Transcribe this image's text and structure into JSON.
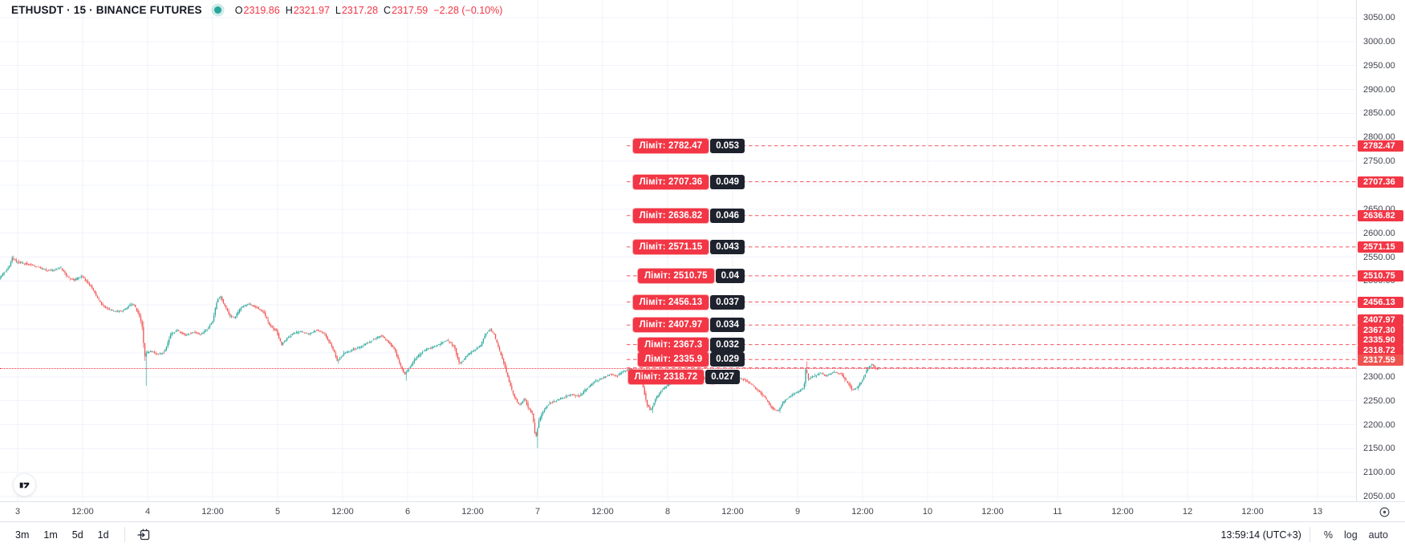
{
  "header": {
    "title": "ETHUSDT · 15 · BINANCE FUTURES",
    "symbol": "ETHUSDT",
    "interval": "15",
    "exchange": "BINANCE FUTURES",
    "ohlc": [
      {
        "k": "O",
        "v": "2319.86"
      },
      {
        "k": "H",
        "v": "2321.97"
      },
      {
        "k": "L",
        "v": "2317.28"
      },
      {
        "k": "C",
        "v": "2317.59"
      }
    ],
    "change": "−2.28",
    "change_pct": "(−0.10%)"
  },
  "colors": {
    "up": "#26a69a",
    "down": "#ef5350",
    "accent_red": "#f23645",
    "last_price_tag": "#ef5350",
    "grid": "#f0f3fa",
    "axis_text": "#42464e",
    "label_dark_box": "#1e222d",
    "connection_dot": "#26a69a"
  },
  "icons": {
    "connection-dot": "filled teal circle with halo",
    "go-to-date-icon": "calendar with arrow",
    "axis-settings-icon": "circle with center dot",
    "tradingview-logo": "17 monogram in white circle"
  },
  "chart_data": {
    "type": "candlestick",
    "title": "ETHUSDT 15m BINANCE FUTURES",
    "y_axis": {
      "min": 2050,
      "max": 3050,
      "step": 50,
      "side": "right",
      "visible_labels": [
        3050,
        3000,
        2950,
        2900,
        2850,
        2800,
        2750,
        2650,
        2600,
        2550,
        2500,
        2300,
        2250,
        2200,
        2150,
        2100,
        2050
      ]
    },
    "x_axis": {
      "day_labels": [
        "3",
        "4",
        "5",
        "6",
        "7",
        "8",
        "9",
        "10",
        "11",
        "12",
        "13"
      ],
      "between_label": "12:00"
    },
    "grid": true,
    "last_price": 2317.59,
    "ohlc_last": {
      "open": 2319.86,
      "high": 2321.97,
      "low": 2317.28,
      "close": 2317.59
    },
    "limit_orders": [
      {
        "prefix": "Ліміт:",
        "price": 2782.47,
        "price_text": "2782.47",
        "qty": "0.053"
      },
      {
        "prefix": "Ліміт:",
        "price": 2707.36,
        "price_text": "2707.36",
        "qty": "0.049"
      },
      {
        "prefix": "Ліміт:",
        "price": 2636.82,
        "price_text": "2636.82",
        "qty": "0.046"
      },
      {
        "prefix": "Ліміт:",
        "price": 2571.15,
        "price_text": "2571.15",
        "qty": "0.043"
      },
      {
        "prefix": "Ліміт:",
        "price": 2510.75,
        "price_text": "2510.75",
        "qty": "0.04"
      },
      {
        "prefix": "Ліміт:",
        "price": 2456.13,
        "price_text": "2456.13",
        "qty": "0.037"
      },
      {
        "prefix": "Ліміт:",
        "price": 2407.97,
        "price_text": "2407.97",
        "qty": "0.034"
      },
      {
        "prefix": "Ліміт:",
        "price": 2367.3,
        "price_text": "2367.3",
        "qty": "0.032"
      },
      {
        "prefix": "Ліміт:",
        "price": 2335.9,
        "price_text": "2335.9",
        "qty": "0.029"
      },
      {
        "prefix": "Ліміт:",
        "price": 2318.72,
        "price_text": "2318.72",
        "qty": "0.027"
      }
    ],
    "price_path": [
      [
        -0.14,
        2503
      ],
      [
        -0.11,
        2513
      ],
      [
        -0.06,
        2528
      ],
      [
        -0.03,
        2549
      ],
      [
        0.0,
        2540
      ],
      [
        0.06,
        2537
      ],
      [
        0.12,
        2533
      ],
      [
        0.18,
        2528
      ],
      [
        0.24,
        2521
      ],
      [
        0.3,
        2524
      ],
      [
        0.34,
        2528
      ],
      [
        0.4,
        2507
      ],
      [
        0.45,
        2502
      ],
      [
        0.5,
        2511
      ],
      [
        0.54,
        2499
      ],
      [
        0.58,
        2487
      ],
      [
        0.62,
        2466
      ],
      [
        0.66,
        2450
      ],
      [
        0.7,
        2442
      ],
      [
        0.76,
        2436
      ],
      [
        0.82,
        2438
      ],
      [
        0.86,
        2447
      ],
      [
        0.9,
        2452
      ],
      [
        0.93,
        2437
      ],
      [
        0.955,
        2420
      ],
      [
        0.972,
        2400
      ],
      [
        0.985,
        2340
      ],
      [
        1.0,
        2350
      ],
      [
        1.04,
        2353
      ],
      [
        1.09,
        2347
      ],
      [
        1.14,
        2352
      ],
      [
        1.19,
        2390
      ],
      [
        1.24,
        2396
      ],
      [
        1.3,
        2387
      ],
      [
        1.36,
        2393
      ],
      [
        1.42,
        2389
      ],
      [
        1.47,
        2400
      ],
      [
        1.51,
        2416
      ],
      [
        1.545,
        2460
      ],
      [
        1.57,
        2468
      ],
      [
        1.61,
        2445
      ],
      [
        1.64,
        2427
      ],
      [
        1.68,
        2423
      ],
      [
        1.73,
        2445
      ],
      [
        1.78,
        2452
      ],
      [
        1.84,
        2446
      ],
      [
        1.9,
        2436
      ],
      [
        1.95,
        2407
      ],
      [
        2.0,
        2396
      ],
      [
        2.04,
        2366
      ],
      [
        2.08,
        2380
      ],
      [
        2.13,
        2390
      ],
      [
        2.19,
        2395
      ],
      [
        2.25,
        2389
      ],
      [
        2.31,
        2398
      ],
      [
        2.37,
        2390
      ],
      [
        2.43,
        2362
      ],
      [
        2.47,
        2333
      ],
      [
        2.52,
        2349
      ],
      [
        2.58,
        2356
      ],
      [
        2.64,
        2362
      ],
      [
        2.7,
        2370
      ],
      [
        2.76,
        2380
      ],
      [
        2.81,
        2386
      ],
      [
        2.86,
        2373
      ],
      [
        2.91,
        2357
      ],
      [
        2.95,
        2327
      ],
      [
        2.985,
        2305
      ],
      [
        3.02,
        2318
      ],
      [
        3.07,
        2338
      ],
      [
        3.13,
        2354
      ],
      [
        3.19,
        2361
      ],
      [
        3.25,
        2367
      ],
      [
        3.31,
        2377
      ],
      [
        3.37,
        2363
      ],
      [
        3.41,
        2325
      ],
      [
        3.45,
        2340
      ],
      [
        3.51,
        2354
      ],
      [
        3.57,
        2365
      ],
      [
        3.61,
        2390
      ],
      [
        3.645,
        2399
      ],
      [
        3.675,
        2389
      ],
      [
        3.71,
        2360
      ],
      [
        3.75,
        2330
      ],
      [
        3.79,
        2290
      ],
      [
        3.83,
        2258
      ],
      [
        3.87,
        2240
      ],
      [
        3.91,
        2255
      ],
      [
        3.94,
        2234
      ],
      [
        3.97,
        2224
      ],
      [
        3.995,
        2170
      ],
      [
        4.02,
        2208
      ],
      [
        4.05,
        2226
      ],
      [
        4.09,
        2243
      ],
      [
        4.15,
        2250
      ],
      [
        4.21,
        2257
      ],
      [
        4.27,
        2263
      ],
      [
        4.33,
        2259
      ],
      [
        4.39,
        2276
      ],
      [
        4.45,
        2291
      ],
      [
        4.51,
        2297
      ],
      [
        4.57,
        2306
      ],
      [
        4.62,
        2301
      ],
      [
        4.67,
        2312
      ],
      [
        4.72,
        2316
      ],
      [
        4.77,
        2309
      ],
      [
        4.81,
        2292
      ],
      [
        4.85,
        2243
      ],
      [
        4.88,
        2229
      ],
      [
        4.92,
        2256
      ],
      [
        4.96,
        2270
      ],
      [
        5.01,
        2283
      ],
      [
        5.07,
        2292
      ],
      [
        5.13,
        2289
      ],
      [
        5.19,
        2297
      ],
      [
        5.24,
        2314
      ],
      [
        5.29,
        2297
      ],
      [
        5.35,
        2285
      ],
      [
        5.41,
        2294
      ],
      [
        5.47,
        2289
      ],
      [
        5.53,
        2300
      ],
      [
        5.59,
        2295
      ],
      [
        5.65,
        2285
      ],
      [
        5.71,
        2271
      ],
      [
        5.77,
        2252
      ],
      [
        5.82,
        2233
      ],
      [
        5.86,
        2228
      ],
      [
        5.91,
        2251
      ],
      [
        5.97,
        2263
      ],
      [
        6.02,
        2269
      ],
      [
        6.06,
        2280
      ],
      [
        6.075,
        2322
      ],
      [
        6.09,
        2294
      ],
      [
        6.13,
        2300
      ],
      [
        6.18,
        2308
      ],
      [
        6.23,
        2302
      ],
      [
        6.29,
        2310
      ],
      [
        6.35,
        2305
      ],
      [
        6.39,
        2289
      ],
      [
        6.43,
        2273
      ],
      [
        6.47,
        2277
      ],
      [
        6.51,
        2294
      ],
      [
        6.55,
        2318
      ],
      [
        6.585,
        2328
      ],
      [
        6.61,
        2315
      ],
      [
        6.63,
        2317.59
      ]
    ],
    "wick_overrides": [
      {
        "t": -0.03,
        "high": 2553
      },
      {
        "t": 0.985,
        "low": 2281
      },
      {
        "t": 2.47,
        "low": 2327
      },
      {
        "t": 2.985,
        "low": 2292
      },
      {
        "t": 3.995,
        "low": 2151
      },
      {
        "t": 4.88,
        "low": 2224
      },
      {
        "t": 5.86,
        "low": 2224
      },
      {
        "t": 6.075,
        "high": 2332
      }
    ]
  },
  "toolbar": {
    "ranges": [
      "3m",
      "1m",
      "5d",
      "1d"
    ],
    "clock": "13:59:14 (UTC+3)",
    "percent_label": "%",
    "log_label": "log",
    "auto_label": "auto"
  }
}
